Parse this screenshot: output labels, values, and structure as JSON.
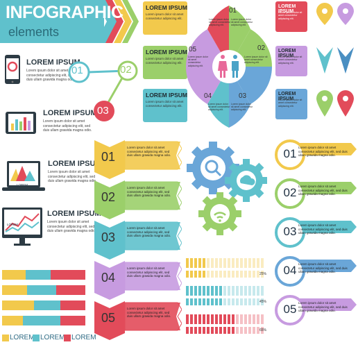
{
  "title": {
    "main": "INFOGRAPHIC",
    "sub": "elements"
  },
  "devices": [
    {
      "heading": "LOREM IPSUM",
      "text": "Lorem ipsum dolor sit amet consectetur adipiscing elit, sed duis ullam grawida magna odio."
    },
    {
      "heading": "LOREM IPSUM",
      "text": "Lorem ipsum dolor sit amet consectetur adipiscing elit, sed duis ullam grawida magna odio."
    },
    {
      "heading": "LOREM IPSUM",
      "text": "Lorem ipsum dolor sit amet consectetur adipiscing elit, sed duis ullam grawida magna odio."
    },
    {
      "heading": "LOREM IPSUM",
      "text": "Lorem ipsum dolor sit amet consectetur adipiscing elit, sed duis ullam grawida magna odio."
    }
  ],
  "device_screen_label": "LOREM",
  "nodes": [
    "01",
    "02",
    "03"
  ],
  "middle_boxes": [
    {
      "title": "LOREM IPSUM",
      "text": "Lorem ipsum dolor sit amet consectetur adipiscing elit."
    },
    {
      "title": "LOREM IPSUM",
      "text": "Lorem ipsum dolor sit amet consectetur adipiscing elit."
    },
    {
      "title": "LOREM IPSUM",
      "text": "Lorem ipsum dolor sit amet consectetur adipiscing elit."
    }
  ],
  "wheel": {
    "numbers": [
      "06",
      "01",
      "02",
      "03",
      "04",
      "05"
    ],
    "text": "Lorem ipsum dolor sit amet consectetur adipiscing elit."
  },
  "right_boxes": [
    {
      "title": "LOREM IPSUM",
      "text": "Lorem ipsum dolor sit amet consectetur adipiscing elit."
    },
    {
      "title": "LOREM IPSUM",
      "text": "Lorem ipsum dolor sit amet consectetur adipiscing elit."
    },
    {
      "title": "LOREM IPSUM",
      "text": "Lorem ipsum dolor sit amet consectetur adipiscing elit."
    }
  ],
  "chevrons": [
    {
      "num": "01",
      "text": "Lorem ipsum dolor sit amet consectetur adipiscing elit, sed duis ullam grawida magna odio."
    },
    {
      "num": "02",
      "text": "Lorem ipsum dolor sit amet consectetur adipiscing elit, sed duis ullam grawida magna odio."
    },
    {
      "num": "03",
      "text": "Lorem ipsum dolor sit amet consectetur adipiscing elit, sed duis ullam grawida magna odio."
    },
    {
      "num": "04",
      "text": "Lorem ipsum dolor sit amet consectetur adipiscing elit, sed duis ullam grawida magna odio."
    },
    {
      "num": "05",
      "text": "Lorem ipsum dolor sit amet consectetur adipiscing elit, sed duis ullam grawida magna odio."
    }
  ],
  "circles": [
    {
      "num": "01",
      "text": "Lorem ipsum dolor sit amet consectetur adipiscing elit, sed duis ullam grawida magna odio."
    },
    {
      "num": "02",
      "text": "Lorem ipsum dolor sit amet consectetur adipiscing elit, sed duis ullam grawida magna odio."
    },
    {
      "num": "03",
      "text": "Lorem ipsum dolor sit amet consectetur adipiscing elit, sed duis ullam grawida magna odio."
    },
    {
      "num": "04",
      "text": "Lorem ipsum dolor sit amet consectetur adipiscing elit, sed duis ullam grawida magna odio."
    },
    {
      "num": "05",
      "text": "Lorem ipsum dolor sit amet consectetur adipiscing elit, sed duis ullam grawida magna odio."
    }
  ],
  "progress": [
    {
      "label": "25%",
      "value": 25,
      "color": "#f2c94c"
    },
    {
      "label": "45%",
      "value": 45,
      "color": "#5fc1cc"
    },
    {
      "label": "65%",
      "value": 65,
      "color": "#e24b5a"
    }
  ],
  "stacked_bars": {
    "rows": [
      [
        28,
        30,
        42
      ],
      [
        30,
        35,
        35
      ],
      [
        38,
        32,
        30
      ],
      [
        25,
        45,
        30
      ]
    ],
    "colors": [
      "#f2c94c",
      "#5fc1cc",
      "#e24b5a"
    ]
  },
  "legend": [
    "LOREM",
    "LOREM",
    "LOREM"
  ],
  "colors": {
    "teal": "#5fc1cc",
    "yellow": "#f2c94c",
    "green": "#9bcf6a",
    "purple": "#c79be0",
    "red": "#e24b5a",
    "blue": "#6aa6d8"
  }
}
